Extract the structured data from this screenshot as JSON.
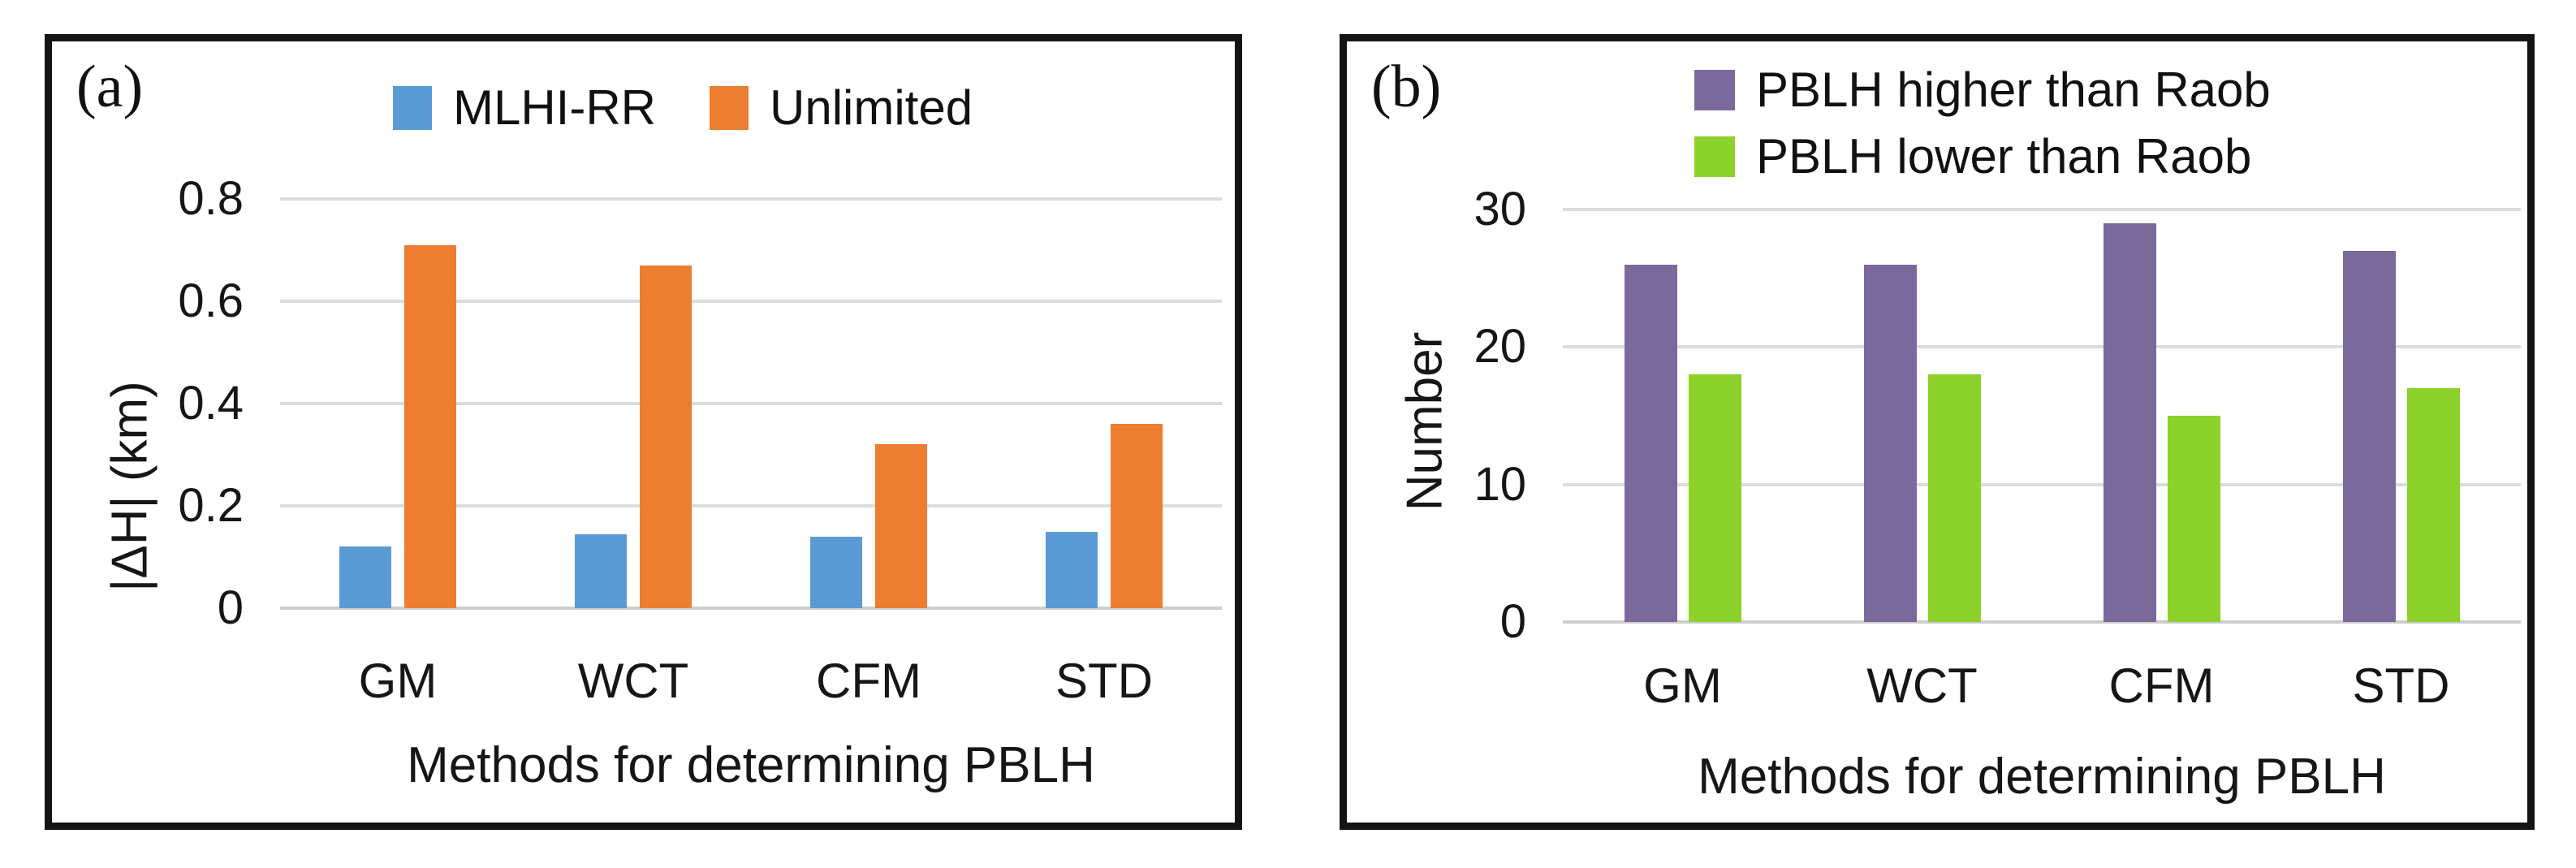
{
  "figure": {
    "background": "#FFFFFF",
    "frame_color": "#141414",
    "grid_color": "#DCDCDC",
    "axis_line_color": "#CDCDCD",
    "panels": [
      {
        "corner_label": "(a)"
      },
      {
        "corner_label": "(b)"
      }
    ]
  },
  "chart_data": [
    {
      "type": "bar",
      "panel_label": "(a)",
      "title": "",
      "categories": [
        "GM",
        "WCT",
        "CFM",
        "STD"
      ],
      "series": [
        {
          "name": "MLHI-RR",
          "color": "#5B9BD5",
          "values": [
            0.12,
            0.145,
            0.14,
            0.15
          ]
        },
        {
          "name": "Unlimited",
          "color": "#ED7D31",
          "values": [
            0.71,
            0.67,
            0.32,
            0.36
          ]
        }
      ],
      "xlabel": "Methods for determining PBLH",
      "ylabel": "|ΔH| (km)",
      "ylim": [
        0,
        0.8
      ],
      "yticks": [
        "0",
        "0.2",
        "0.4",
        "0.6",
        "0.8"
      ],
      "grid": true,
      "legend_position": "top-horizontal"
    },
    {
      "type": "bar",
      "panel_label": "(b)",
      "title": "",
      "categories": [
        "GM",
        "WCT",
        "CFM",
        "STD"
      ],
      "series": [
        {
          "name": "PBLH higher than Raob",
          "color": "#7A6A9B",
          "values": [
            26,
            26,
            29,
            27
          ]
        },
        {
          "name": "PBLH lower than Raob",
          "color": "#8CD22B",
          "values": [
            18,
            18,
            15,
            17
          ]
        }
      ],
      "xlabel": "Methods for determining PBLH",
      "ylabel": "Number",
      "ylim": [
        0,
        30
      ],
      "yticks": [
        "0",
        "10",
        "20",
        "30"
      ],
      "grid": true,
      "legend_position": "top-stacked"
    }
  ]
}
